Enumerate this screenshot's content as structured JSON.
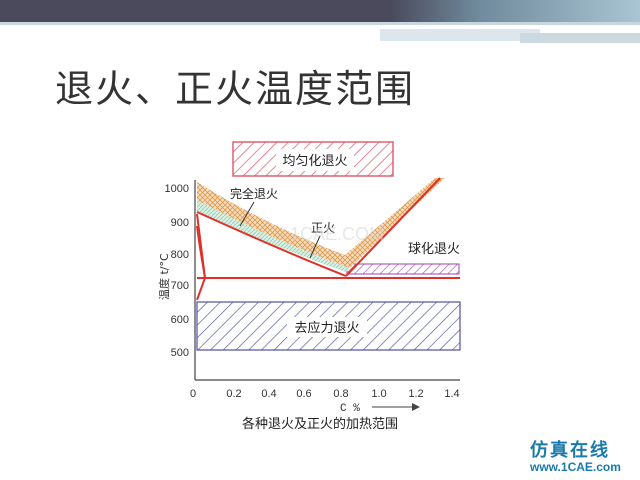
{
  "slide": {
    "title": "退火、正火温度范围"
  },
  "diagram": {
    "caption": "各种退火及正火的加热范围",
    "x_axis_label": "C %",
    "y_axis_label": "温度 t/°C",
    "x_ticks": [
      "0",
      "0.2",
      "0.4",
      "0.6",
      "0.8",
      "1.0",
      "1.2",
      "1.4"
    ],
    "y_ticks": [
      "1000",
      "900",
      "800",
      "700",
      "600",
      "500"
    ],
    "regions": {
      "homogenizing": "均匀化退火",
      "full_annealing": "完全退火",
      "normalizing": "正火",
      "spheroidizing": "球化退火",
      "stress_relief": "去应力退火"
    },
    "colors": {
      "phase_lines": "#e0302a",
      "homogenizing_hatch": "#e06070",
      "full_annealing_hatch": "#d8903a",
      "normalizing_band": "#88c8a8",
      "spheroidizing_hatch": "#a040b0",
      "stress_relief_hatch": "#5050a0"
    },
    "watermark": "1CAE.COM"
  },
  "brand": {
    "name": "仿真在线",
    "url": "www.1CAE.com"
  }
}
